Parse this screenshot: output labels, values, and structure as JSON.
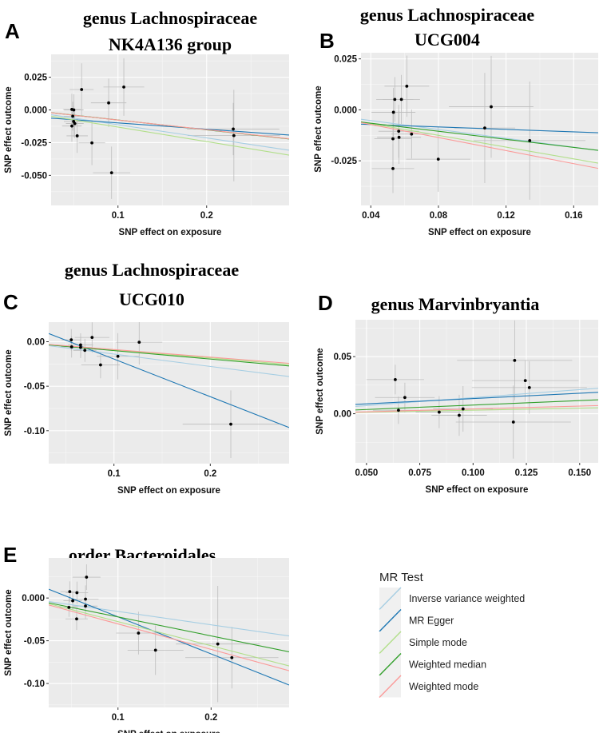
{
  "legend": {
    "title": "MR Test",
    "items": [
      {
        "label": "Inverse variance weighted",
        "color": "#a6cee3"
      },
      {
        "label": "MR Egger",
        "color": "#1f78b4"
      },
      {
        "label": "Simple mode",
        "color": "#b2df8a"
      },
      {
        "label": "Weighted median",
        "color": "#33a02c"
      },
      {
        "label": "Weighted mode",
        "color": "#fb9a99"
      }
    ]
  },
  "chart_data": [
    {
      "type": "scatter",
      "panel_label": "A",
      "title": [
        "genus  Lachnospiraceae",
        "NK4A136 group"
      ],
      "xlabel": "SNP effect on exposure",
      "ylabel": "SNP effect outcome",
      "xlim": [
        0.0246,
        0.293
      ],
      "ylim": [
        -0.073,
        0.0425
      ],
      "xticks": [
        0.1,
        0.2
      ],
      "xtick_labels": [
        "0.1",
        "0.2"
      ],
      "yticks": [
        0.025,
        0,
        -0.025,
        -0.05
      ],
      "ytick_labels": [
        "0.025",
        "0.000",
        "-0.025",
        "-0.050"
      ],
      "points": [
        [
          0.048,
          0.0004,
          0.01,
          0.012
        ],
        [
          0.0502,
          0.0,
          0.011,
          0.012
        ],
        [
          0.059,
          0.0156,
          0.0135,
          0.02
        ],
        [
          0.1066,
          0.0175,
          0.023,
          0.022
        ],
        [
          0.0895,
          0.0054,
          0.02,
          0.0185
        ],
        [
          0.049,
          -0.0048,
          0.01,
          0.011
        ],
        [
          0.05,
          -0.0088,
          0.011,
          0.012
        ],
        [
          0.0513,
          -0.0104,
          0.01,
          0.011
        ],
        [
          0.048,
          -0.0123,
          0.011,
          0.012
        ],
        [
          0.054,
          -0.0198,
          0.012,
          0.013
        ],
        [
          0.0706,
          -0.0252,
          0.015,
          0.017
        ],
        [
          0.0928,
          -0.048,
          0.021,
          0.02
        ],
        [
          0.23,
          -0.0146,
          0.052,
          0.02
        ],
        [
          0.2307,
          -0.0196,
          0.052,
          0.035
        ]
      ],
      "lines": [
        {
          "method": "Inverse variance weighted",
          "intercept": -0.0012,
          "slope": -0.101
        },
        {
          "method": "MR Egger",
          "intercept": -0.0051,
          "slope": -0.048
        },
        {
          "method": "Simple mode",
          "intercept": -0.002,
          "slope": -0.111
        },
        {
          "method": "Weighted median",
          "intercept": -0.0002,
          "slope": -0.075
        },
        {
          "method": "Weighted mode",
          "intercept": -0.0003,
          "slope": -0.074
        }
      ]
    },
    {
      "type": "scatter",
      "panel_label": "B",
      "title": [
        "genus  Lachnospiraceae",
        "UCG004"
      ],
      "xlabel": "SNP effect on exposure",
      "ylabel": "SNP effect outcome",
      "xlim": [
        0.0342,
        0.1745
      ],
      "ylim": [
        -0.0469,
        0.028
      ],
      "xticks": [
        0.04,
        0.08,
        0.12,
        0.16
      ],
      "xtick_labels": [
        "0.04",
        "0.08",
        "0.12",
        "0.16"
      ],
      "yticks": [
        0.025,
        0,
        -0.025
      ],
      "ytick_labels": [
        "0.025",
        "0.000",
        "-0.025"
      ],
      "points": [
        [
          0.0613,
          0.0116,
          0.0132,
          0.015
        ],
        [
          0.0542,
          0.0051,
          0.011,
          0.011
        ],
        [
          0.0581,
          0.0051,
          0.011,
          0.012
        ],
        [
          0.0534,
          -0.0012,
          0.013,
          0.012
        ],
        [
          0.0565,
          -0.0105,
          0.012,
          0.013
        ],
        [
          0.0531,
          -0.0142,
          0.011,
          0.013
        ],
        [
          0.0567,
          -0.0135,
          0.013,
          0.013
        ],
        [
          0.0641,
          -0.0119,
          0.012,
          0.012
        ],
        [
          0.0531,
          -0.0288,
          0.0125,
          0.012
        ],
        [
          0.0799,
          -0.0242,
          0.019,
          0.016
        ],
        [
          0.1112,
          0.0015,
          0.025,
          0.025
        ],
        [
          0.1074,
          -0.0089,
          0.018,
          0.027
        ],
        [
          0.134,
          -0.0151,
          0.033,
          0.029
        ]
      ],
      "lines": [
        {
          "method": "Inverse variance weighted",
          "intercept": -0.0009,
          "slope": -0.109
        },
        {
          "method": "MR Egger",
          "intercept": -0.006,
          "slope": -0.03
        },
        {
          "method": "Simple mode",
          "intercept": -0.001,
          "slope": -0.144
        },
        {
          "method": "Weighted median",
          "intercept": -0.0026,
          "slope": -0.099
        },
        {
          "method": "Weighted mode",
          "intercept": -0.0008,
          "slope": -0.16
        }
      ]
    },
    {
      "type": "scatter",
      "panel_label": "C",
      "title": [
        "genus  Lachnospiraceae",
        "UCG010"
      ],
      "xlabel": "SNP effect on exposure",
      "ylabel": "SNP effect outcome",
      "xlim": [
        0.0323,
        0.2818
      ],
      "ylim": [
        -0.137,
        0.022
      ],
      "xticks": [
        0.1,
        0.2
      ],
      "xtick_labels": [
        "0.1",
        "0.2"
      ],
      "yticks": [
        0,
        -0.05,
        -0.1
      ],
      "ytick_labels": [
        "0.00",
        "-0.05",
        "-0.10"
      ],
      "points": [
        [
          0.0557,
          0.0021,
          0.01,
          0.012
        ],
        [
          0.0561,
          -0.0058,
          0.011,
          0.012
        ],
        [
          0.0654,
          -0.0036,
          0.013,
          0.013
        ],
        [
          0.0654,
          -0.0064,
          0.012,
          0.012
        ],
        [
          0.0698,
          -0.0097,
          0.012,
          0.013
        ],
        [
          0.0773,
          0.0048,
          0.018,
          0.017
        ],
        [
          0.0861,
          -0.0261,
          0.02,
          0.015
        ],
        [
          0.1041,
          -0.0164,
          0.022,
          0.026
        ],
        [
          0.1262,
          -0.0006,
          0.024,
          0.025
        ],
        [
          0.2213,
          -0.0927,
          0.05,
          0.038
        ]
      ],
      "lines": [
        {
          "method": "Inverse variance weighted",
          "intercept": 0.0,
          "slope": -0.139
        },
        {
          "method": "MR Egger",
          "intercept": 0.0228,
          "slope": -0.423
        },
        {
          "method": "Simple mode",
          "intercept": -0.0003,
          "slope": -0.09
        },
        {
          "method": "Weighted median",
          "intercept": -0.0005,
          "slope": -0.095
        },
        {
          "method": "Weighted mode",
          "intercept": -0.0003,
          "slope": -0.085
        }
      ]
    },
    {
      "type": "scatter",
      "panel_label": "D",
      "title": [
        "genus  Marvinbryantia"
      ],
      "xlabel": "SNP effect on exposure",
      "ylabel": "SNP effect outcome",
      "xlim": [
        0.0448,
        0.1587
      ],
      "ylim": [
        -0.043,
        0.0823
      ],
      "xticks": [
        0.05,
        0.075,
        0.1,
        0.125,
        0.15
      ],
      "xtick_labels": [
        "0.050",
        "0.075",
        "0.100",
        "0.125",
        "0.150"
      ],
      "yticks": [
        0.05,
        0
      ],
      "ytick_labels": [
        "0.05",
        "0.00"
      ],
      "points": [
        [
          0.0635,
          0.0299,
          0.0135,
          0.013
        ],
        [
          0.068,
          0.0142,
          0.014,
          0.013
        ],
        [
          0.065,
          0.003,
          0.012,
          0.012
        ],
        [
          0.0841,
          0.0014,
          0.011,
          0.014
        ],
        [
          0.0935,
          -0.0014,
          0.013,
          0.018
        ],
        [
          0.0953,
          0.0042,
          0.014,
          0.02
        ],
        [
          0.1195,
          0.0467,
          0.027,
          0.035
        ],
        [
          0.1245,
          0.029,
          0.025,
          0.018
        ],
        [
          0.1264,
          0.0229,
          0.027,
          0.023
        ],
        [
          0.1189,
          -0.0073,
          0.027,
          0.032
        ]
      ],
      "lines": [
        {
          "method": "Inverse variance weighted",
          "intercept": 0.0001,
          "slope": 0.14
        },
        {
          "method": "MR Egger",
          "intercept": 0.004,
          "slope": 0.093
        },
        {
          "method": "Simple mode",
          "intercept": -0.0004,
          "slope": 0.035
        },
        {
          "method": "Weighted median",
          "intercept": -0.0002,
          "slope": 0.078
        },
        {
          "method": "Weighted mode",
          "intercept": -0.0008,
          "slope": 0.05
        }
      ]
    },
    {
      "type": "scatter",
      "panel_label": "E",
      "title": [
        "order  Bacteroidales"
      ],
      "xlabel": "SNP effect on exposure",
      "ylabel": "SNP effect outcome",
      "xlim": [
        0.0256,
        0.2838
      ],
      "ylim": [
        -0.128,
        0.0469
      ],
      "xticks": [
        0.1,
        0.2
      ],
      "xtick_labels": [
        "0.1",
        "0.2"
      ],
      "yticks": [
        0,
        -0.05,
        -0.1
      ],
      "ytick_labels": [
        "0.000",
        "-0.05",
        "-0.10"
      ],
      "points": [
        [
          0.0662,
          0.0244,
          0.015,
          0.015
        ],
        [
          0.0482,
          0.0075,
          0.01,
          0.012
        ],
        [
          0.0559,
          0.0062,
          0.012,
          0.013
        ],
        [
          0.0514,
          -0.0032,
          0.01,
          0.011
        ],
        [
          0.0651,
          -0.0013,
          0.014,
          0.016
        ],
        [
          0.0473,
          -0.011,
          0.01,
          0.011
        ],
        [
          0.0651,
          -0.0094,
          0.013,
          0.015
        ],
        [
          0.0556,
          -0.0244,
          0.012,
          0.013
        ],
        [
          0.122,
          -0.041,
          0.024,
          0.025
        ],
        [
          0.1403,
          -0.061,
          0.03,
          0.029
        ],
        [
          0.2072,
          -0.0538,
          0.045,
          0.068
        ],
        [
          0.2223,
          -0.0698,
          0.05,
          0.036
        ]
      ],
      "lines": [
        {
          "method": "Inverse variance weighted",
          "intercept": -0.0001,
          "slope": -0.156
        },
        {
          "method": "MR Egger",
          "intercept": 0.0214,
          "slope": -0.434
        },
        {
          "method": "Simple mode",
          "intercept": 0.0006,
          "slope": -0.282
        },
        {
          "method": "Weighted median",
          "intercept": 0.0001,
          "slope": -0.222
        },
        {
          "method": "Weighted mode",
          "intercept": -0.0005,
          "slope": -0.298
        }
      ]
    }
  ]
}
